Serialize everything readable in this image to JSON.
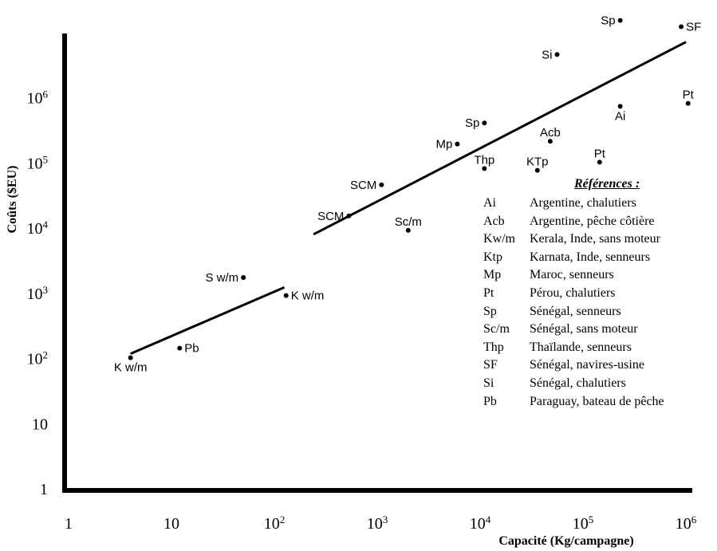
{
  "chart_data": {
    "type": "scatter",
    "title": "",
    "xlabel": "Capacité (Kg/campagne)",
    "ylabel": "Coûts ($EU)",
    "x_scale": "log10",
    "y_scale": "log10",
    "xlim": [
      1,
      1000000
    ],
    "ylim": [
      1,
      10000000
    ],
    "x_ticks": [
      {
        "value": 1,
        "mantissa": "1",
        "exp": ""
      },
      {
        "value": 10,
        "mantissa": "10",
        "exp": ""
      },
      {
        "value": 100,
        "mantissa": "10",
        "exp": "2"
      },
      {
        "value": 1000,
        "mantissa": "10",
        "exp": "3"
      },
      {
        "value": 10000,
        "mantissa": "10",
        "exp": "4"
      },
      {
        "value": 100000,
        "mantissa": "10",
        "exp": "5"
      },
      {
        "value": 1000000,
        "mantissa": "10",
        "exp": "6"
      }
    ],
    "y_ticks": [
      {
        "value": 1,
        "mantissa": "1",
        "exp": ""
      },
      {
        "value": 10,
        "mantissa": "10",
        "exp": ""
      },
      {
        "value": 100,
        "mantissa": "10",
        "exp": "2"
      },
      {
        "value": 1000,
        "mantissa": "10",
        "exp": "3"
      },
      {
        "value": 10000,
        "mantissa": "10",
        "exp": "4"
      },
      {
        "value": 100000,
        "mantissa": "10",
        "exp": "5"
      },
      {
        "value": 1000000,
        "mantissa": "10",
        "exp": "6"
      }
    ],
    "points": [
      {
        "label": "K w/m",
        "x": 4,
        "y": 100,
        "pos": "below"
      },
      {
        "label": "Pb",
        "x": 12,
        "y": 140,
        "pos": "right"
      },
      {
        "label": "S w/m",
        "x": 50,
        "y": 1700,
        "pos": "left"
      },
      {
        "label": "K w/m",
        "x": 130,
        "y": 900,
        "pos": "right"
      },
      {
        "label": "SCM",
        "x": 530,
        "y": 15000,
        "pos": "left"
      },
      {
        "label": "SCM",
        "x": 1100,
        "y": 45000,
        "pos": "left"
      },
      {
        "label": "Sc/m",
        "x": 2000,
        "y": 9000,
        "pos": "above"
      },
      {
        "label": "Mp",
        "x": 6000,
        "y": 190000,
        "pos": "left"
      },
      {
        "label": "Sp",
        "x": 11000,
        "y": 400000,
        "pos": "left"
      },
      {
        "label": "Thp",
        "x": 11000,
        "y": 80000,
        "pos": "above"
      },
      {
        "label": "KTp",
        "x": 36000,
        "y": 75000,
        "pos": "above"
      },
      {
        "label": "Acb",
        "x": 48000,
        "y": 210000,
        "pos": "above"
      },
      {
        "label": "Si",
        "x": 56000,
        "y": 4500000,
        "pos": "left"
      },
      {
        "label": "Pt",
        "x": 145000,
        "y": 100000,
        "pos": "above"
      },
      {
        "label": "Ai",
        "x": 230000,
        "y": 720000,
        "pos": "below"
      },
      {
        "label": "Sp",
        "x": 230000,
        "y": 15000000,
        "pos": "left"
      },
      {
        "label": "SF",
        "x": 900000,
        "y": 12000000,
        "pos": "right"
      },
      {
        "label": "Pt",
        "x": 1050000,
        "y": 800000,
        "pos": "above"
      }
    ],
    "fit_lines": [
      {
        "x": [
          4,
          125
        ],
        "y": [
          115,
          1200
        ]
      },
      {
        "x": [
          240,
          1000000
        ],
        "y": [
          7800,
          7000000
        ]
      }
    ]
  },
  "legend": {
    "title": "Références :",
    "items": [
      {
        "code": "Ai",
        "desc": "Argentine, chalutiers"
      },
      {
        "code": "Acb",
        "desc": "Argentine, pêche côtière"
      },
      {
        "code": "Kw/m",
        "desc": "Kerala, Inde, sans moteur"
      },
      {
        "code": "Ktp",
        "desc": "Karnata, Inde, senneurs"
      },
      {
        "code": "Mp",
        "desc": "Maroc, senneurs"
      },
      {
        "code": "Pt",
        "desc": "Pérou, chalutiers"
      },
      {
        "code": "Sp",
        "desc": "Sénégal, senneurs"
      },
      {
        "code": "Sc/m",
        "desc": "Sénégal, sans moteur"
      },
      {
        "code": "Thp",
        "desc": "Thaïlande, senneurs"
      },
      {
        "code": "SF",
        "desc": "Sénégal, navires-usine"
      },
      {
        "code": "Si",
        "desc": "Sénégal, chalutiers"
      },
      {
        "code": "Pb",
        "desc": "Paraguay, bateau de pêche"
      }
    ]
  }
}
